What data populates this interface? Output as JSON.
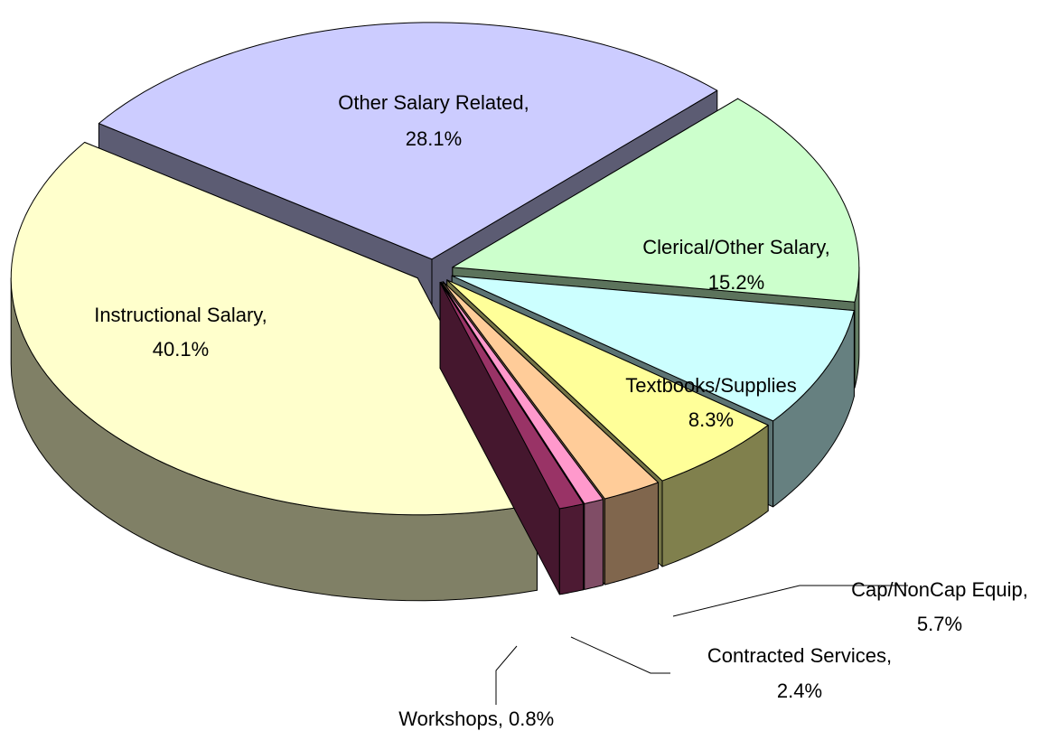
{
  "chart_data": {
    "type": "pie",
    "categories": [
      "Other Salary Related,",
      "Clerical/Other Salary,",
      "Textbooks/Supplies",
      "Cap/NonCap Equip,",
      "Contracted Services,",
      "Workshops,",
      null,
      "Instructional Salary,"
    ],
    "values": [
      28.1,
      15.2,
      8.3,
      5.7,
      2.4,
      0.8,
      1.0,
      40.1
    ],
    "value_labels": [
      "28.1%",
      "15.2%",
      "8.3%",
      "5.7%",
      "2.4%",
      "0.8%",
      null,
      "40.1%"
    ],
    "colors": [
      "#ccccff",
      "#ccffcc",
      "#ccffff",
      "#ffff99",
      "#ffcc99",
      "#ff99cc",
      "#993366",
      "#ffffcc"
    ]
  }
}
